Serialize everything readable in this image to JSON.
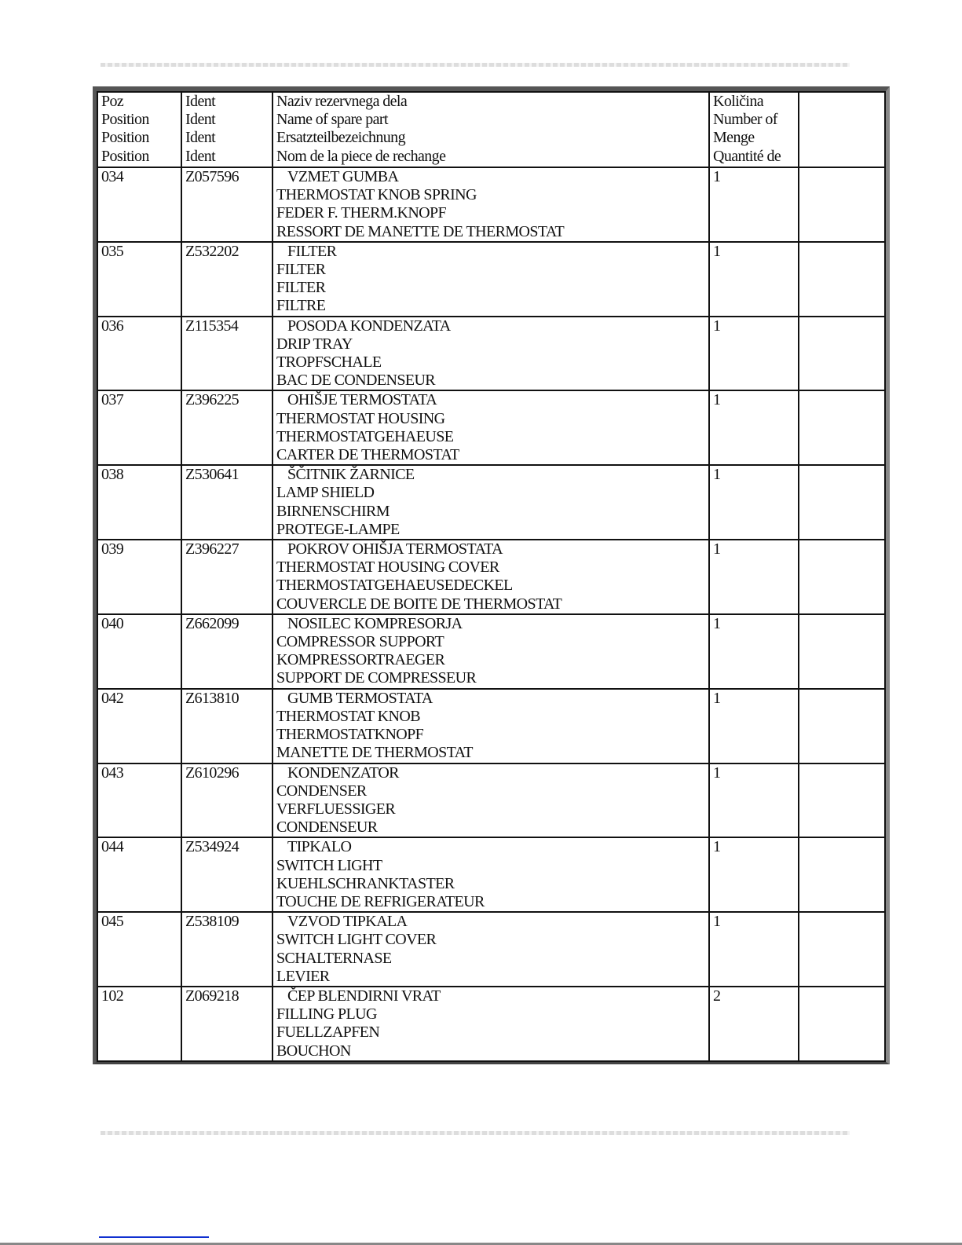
{
  "header": {
    "position": [
      "Poz",
      "Position",
      "Position",
      "Position"
    ],
    "ident": [
      "Ident",
      "Ident",
      "Ident",
      "Ident"
    ],
    "name": [
      "Naziv rezervnega dela",
      "Name of spare part",
      "Ersatzteilbezeichnung",
      "Nom de la piece de rechange"
    ],
    "quantity": [
      "Količina",
      "Number of",
      "Menge",
      "Quantité de"
    ],
    "extra": []
  },
  "rows": [
    {
      "pos": "034",
      "ident": "Z057596",
      "names": [
        "VZMET GUMBA",
        "THERMOSTAT KNOB SPRING",
        "FEDER F. THERM.KNOPF",
        "RESSORT DE MANETTE DE THERMOSTAT"
      ],
      "qty": "1"
    },
    {
      "pos": "035",
      "ident": "Z532202",
      "names": [
        "FILTER",
        "FILTER",
        "FILTER",
        "FILTRE"
      ],
      "qty": "1"
    },
    {
      "pos": "036",
      "ident": "Z115354",
      "names": [
        "POSODA KONDENZATA",
        "DRIP TRAY",
        "TROPFSCHALE",
        "BAC DE CONDENSEUR"
      ],
      "qty": "1"
    },
    {
      "pos": "037",
      "ident": "Z396225",
      "names": [
        "OHIŠJE TERMOSTATA",
        "THERMOSTAT HOUSING",
        "THERMOSTATGEHAEUSE",
        "CARTER DE THERMOSTAT"
      ],
      "qty": "1"
    },
    {
      "pos": "038",
      "ident": "Z530641",
      "names": [
        "ŠČITNIK ŽARNICE",
        "LAMP SHIELD",
        "BIRNENSCHIRM",
        "PROTEGE-LAMPE"
      ],
      "qty": "1"
    },
    {
      "pos": "039",
      "ident": "Z396227",
      "names": [
        "POKROV OHIŠJA TERMOSTATA",
        "THERMOSTAT HOUSING COVER",
        "THERMOSTATGEHAEUSEDECKEL",
        "COUVERCLE DE BOITE DE THERMOSTAT"
      ],
      "qty": "1"
    },
    {
      "pos": "040",
      "ident": "Z662099",
      "names": [
        "NOSILEC KOMPRESORJA",
        "COMPRESSOR SUPPORT",
        "KOMPRESSORTRAEGER",
        "SUPPORT DE COMPRESSEUR"
      ],
      "qty": "1"
    },
    {
      "pos": "042",
      "ident": "Z613810",
      "names": [
        "GUMB TERMOSTATA",
        "THERMOSTAT KNOB",
        "THERMOSTATKNOPF",
        "MANETTE DE THERMOSTAT"
      ],
      "qty": "1"
    },
    {
      "pos": "043",
      "ident": "Z610296",
      "names": [
        "KONDENZATOR",
        "CONDENSER",
        "VERFLUESSIGER",
        "CONDENSEUR"
      ],
      "qty": "1"
    },
    {
      "pos": "044",
      "ident": "Z534924",
      "names": [
        "TIPKALO",
        "SWITCH LIGHT",
        "KUEHLSCHRANKTASTER",
        "TOUCHE DE REFRIGERATEUR"
      ],
      "qty": "1"
    },
    {
      "pos": "045",
      "ident": "Z538109",
      "names": [
        "VZVOD TIPKALA",
        "SWITCH LIGHT COVER",
        "SCHALTERNASE",
        "LEVIER"
      ],
      "qty": "1"
    },
    {
      "pos": "102",
      "ident": "Z069218",
      "names": [
        "ČEP BLENDIRNI VRAT",
        "FILLING PLUG",
        "FUELLZAPFEN",
        "BOUCHON"
      ],
      "qty": "2"
    }
  ]
}
